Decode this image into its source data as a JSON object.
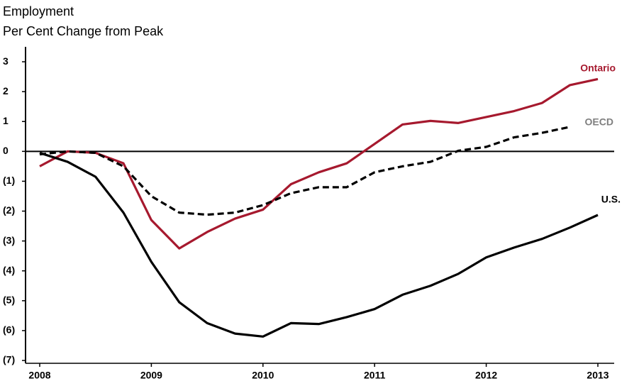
{
  "chart_data": {
    "type": "line",
    "title": "Employment",
    "subtitle": "Per Cent Change from Peak",
    "x": [
      2008,
      2008.25,
      2008.5,
      2008.75,
      2009,
      2009.25,
      2009.5,
      2009.75,
      2010,
      2010.25,
      2010.5,
      2010.75,
      2011,
      2011.25,
      2011.5,
      2011.75,
      2012,
      2012.25,
      2012.5,
      2012.75,
      2013
    ],
    "series": [
      {
        "name": "Ontario",
        "color": "#a6192e",
        "dash": false,
        "values": [
          -0.5,
          0.0,
          -0.05,
          -0.4,
          -2.3,
          -3.25,
          -2.7,
          -2.25,
          -1.95,
          -1.1,
          -0.7,
          -0.4,
          0.25,
          0.9,
          1.02,
          0.95,
          1.15,
          1.35,
          1.62,
          2.22,
          2.42
        ]
      },
      {
        "name": "OECD",
        "color": "#000000",
        "dash": true,
        "values": [
          -0.1,
          0.0,
          -0.05,
          -0.5,
          -1.5,
          -2.05,
          -2.12,
          -2.05,
          -1.8,
          -1.4,
          -1.2,
          -1.2,
          -0.7,
          -0.5,
          -0.35,
          0.02,
          0.15,
          0.47,
          0.62,
          0.82,
          null
        ]
      },
      {
        "name": "U.S.",
        "color": "#000000",
        "dash": false,
        "values": [
          -0.05,
          -0.35,
          -0.85,
          -2.05,
          -3.7,
          -5.05,
          -5.75,
          -6.1,
          -6.2,
          -5.75,
          -5.78,
          -5.55,
          -5.28,
          -4.8,
          -4.5,
          -4.1,
          -3.55,
          -3.22,
          -2.93,
          -2.55,
          -2.13
        ]
      }
    ],
    "xlim": [
      2008,
      2013
    ],
    "xticks": [
      2008,
      2009,
      2010,
      2011,
      2012,
      2013
    ],
    "ylim": [
      -7,
      3.5
    ],
    "yticks": [
      3,
      2,
      1,
      0,
      {
        "value": -1,
        "label": "(1)"
      },
      {
        "value": -2,
        "label": "(2)"
      },
      {
        "value": -3,
        "label": "(3)"
      },
      {
        "value": -4,
        "label": "(4)"
      },
      {
        "value": -5,
        "label": "(5)"
      },
      {
        "value": -6,
        "label": "(6)"
      },
      {
        "value": -7,
        "label": "(7)"
      }
    ]
  }
}
